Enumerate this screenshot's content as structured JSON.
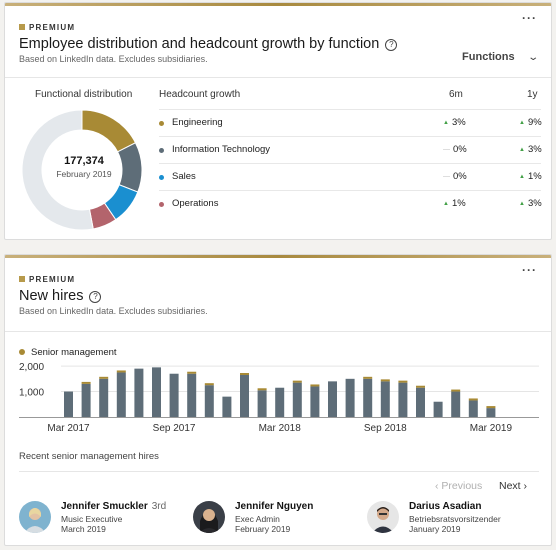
{
  "functions_card": {
    "premium_label": "PREMIUM",
    "more_label": "···",
    "title": "Employee distribution and headcount growth by function",
    "help_icon": "question-circle-icon",
    "subtitle": "Based on LinkedIn data. Excludes subsidiaries.",
    "dropdown_label": "Functions",
    "dropdown_icon": "chevron-down-icon",
    "distribution_label": "Functional distribution",
    "total": "177,374",
    "total_date": "February 2019",
    "growth_header": "Headcount growth",
    "col_6m": "6m",
    "col_1y": "1y",
    "functions": [
      {
        "name": "Engineering",
        "color": "#a88a35",
        "share": 0.175,
        "v6": "3%",
        "t6": "up",
        "v1": "9%",
        "t1": "up"
      },
      {
        "name": "Information Technology",
        "color": "#5e6d78",
        "share": 0.135,
        "v6": "0%",
        "t6": "flat",
        "v1": "3%",
        "t1": "up"
      },
      {
        "name": "Sales",
        "color": "#1a8fd0",
        "share": 0.095,
        "v6": "0%",
        "t6": "flat",
        "v1": "1%",
        "t1": "up"
      },
      {
        "name": "Operations",
        "color": "#b3646c",
        "share": 0.065,
        "v6": "1%",
        "t6": "up",
        "v1": "3%",
        "t1": "up"
      }
    ],
    "other_color": "#e4e8ec"
  },
  "hires_card": {
    "premium_label": "PREMIUM",
    "more_label": "···",
    "title": "New hires",
    "help_icon": "question-circle-icon",
    "subtitle": "Based on LinkedIn data. Excludes subsidiaries.",
    "legend_label": "Senior management",
    "legend_color": "#a88a35",
    "recent_label": "Recent senior management hires",
    "prev_label": "Previous",
    "next_label": "Next",
    "people": [
      {
        "name": "Jennifer Smuckler",
        "degree": "3rd",
        "title": "Music Executive",
        "date": "March 2019",
        "avatar_icon": "profile-photo-icon"
      },
      {
        "name": "Jennifer Nguyen",
        "degree": "",
        "title": "Exec Admin",
        "date": "February 2019",
        "avatar_icon": "profile-photo-icon"
      },
      {
        "name": "Darius Asadian",
        "degree": "",
        "title": "Betriebsratsvorsitzender",
        "date": "January 2019",
        "avatar_icon": "profile-photo-icon"
      }
    ]
  },
  "chart_data": {
    "type": "bar",
    "title": "",
    "xlabel": "",
    "ylabel": "",
    "ylim": [
      0,
      2200
    ],
    "y_ticks": [
      "1,000",
      "2,000"
    ],
    "y_tick_values": [
      1000,
      2000
    ],
    "x_tick_labels": [
      "Mar 2017",
      "Sep 2017",
      "Mar 2018",
      "Sep 2018",
      "Mar 2019"
    ],
    "x_tick_index": [
      0,
      6,
      12,
      18,
      24
    ],
    "categories": [
      "Mar 2017",
      "Apr 2017",
      "May 2017",
      "Jun 2017",
      "Jul 2017",
      "Aug 2017",
      "Sep 2017",
      "Oct 2017",
      "Nov 2017",
      "Dec 2017",
      "Jan 2018",
      "Feb 2018",
      "Mar 2018",
      "Apr 2018",
      "May 2018",
      "Jun 2018",
      "Jul 2018",
      "Aug 2018",
      "Sep 2018",
      "Oct 2018",
      "Nov 2018",
      "Dec 2018",
      "Jan 2019",
      "Feb 2019",
      "Mar 2019"
    ],
    "series": [
      {
        "name": "",
        "color": "#5e6d78",
        "values": [
          1000,
          1300,
          1500,
          1750,
          1900,
          1950,
          1700,
          1700,
          1250,
          800,
          1650,
          1050,
          1150,
          1350,
          1200,
          1400,
          1500,
          1500,
          1400,
          1350,
          1150,
          600,
          1000,
          650,
          350
        ]
      },
      {
        "name": "Senior management",
        "color": "#a88a35",
        "values": [
          0,
          50,
          50,
          50,
          0,
          0,
          0,
          50,
          50,
          0,
          50,
          50,
          0,
          50,
          50,
          0,
          0,
          50,
          50,
          50,
          50,
          0,
          50,
          50,
          50
        ]
      }
    ]
  }
}
